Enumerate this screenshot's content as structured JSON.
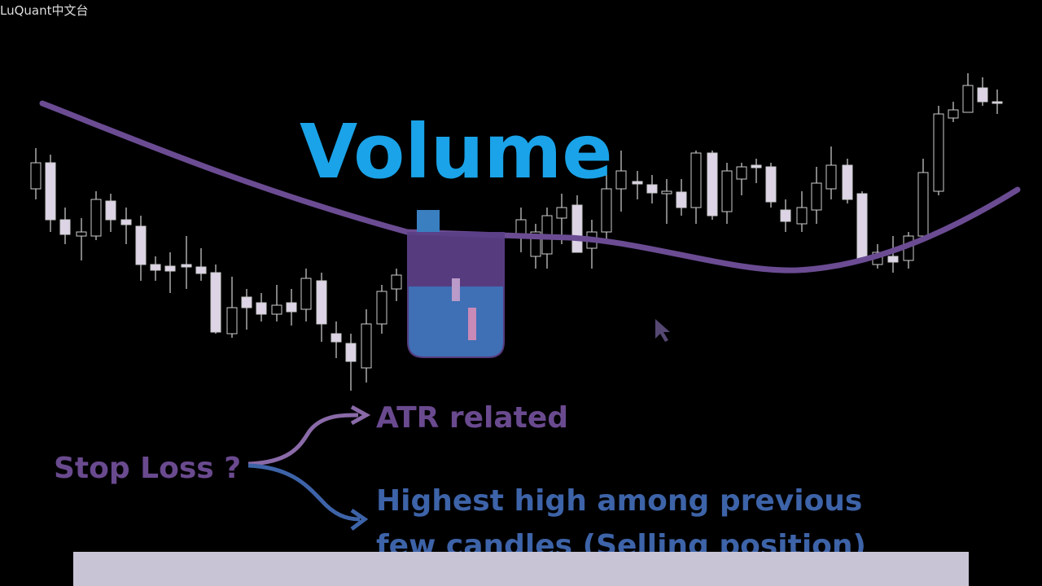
{
  "header": {
    "channel": "LuQuant中文台"
  },
  "slide": {
    "title": "Volume",
    "stop_loss": "Stop Loss ?",
    "options": {
      "first": "ATR related",
      "second_lines": [
        "Highest high among previous",
        "few candles (Selling position)"
      ]
    }
  }
}
